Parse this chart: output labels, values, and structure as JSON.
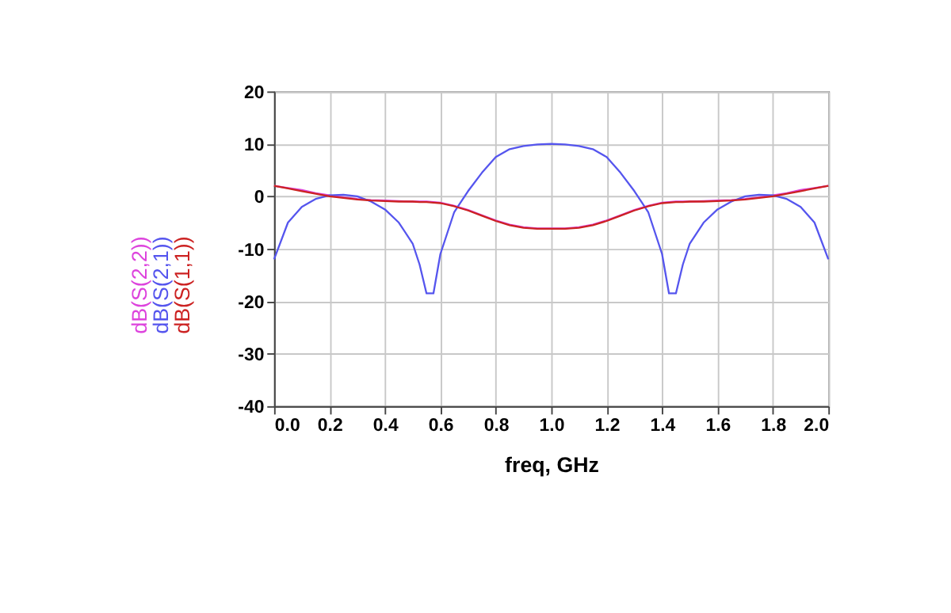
{
  "chart_data": {
    "type": "line",
    "xlabel": "freq, GHz",
    "x": [
      0,
      0.05,
      0.1,
      0.15,
      0.2,
      0.25,
      0.3,
      0.35,
      0.4,
      0.45,
      0.5,
      0.525,
      0.55,
      0.575,
      0.6,
      0.65,
      0.7,
      0.75,
      0.8,
      0.85,
      0.9,
      0.95,
      1.0,
      1.05,
      1.1,
      1.15,
      1.2,
      1.25,
      1.3,
      1.35,
      1.4,
      1.425,
      1.45,
      1.475,
      1.5,
      1.55,
      1.6,
      1.65,
      1.7,
      1.75,
      1.8,
      1.85,
      1.9,
      1.95,
      2.0
    ],
    "series": [
      {
        "name": "dB(S(2,2))",
        "color": "#dd44dd",
        "values": [
          2,
          1.6,
          1.2,
          0.6,
          0.2,
          -0.2,
          -0.5,
          -0.7,
          -0.8,
          -0.9,
          -1,
          -1,
          -1,
          -1.1,
          -1.2,
          -1.8,
          -2.6,
          -3.6,
          -4.6,
          -5.4,
          -5.9,
          -6.1,
          -6.1,
          -6.1,
          -5.9,
          -5.4,
          -4.6,
          -3.6,
          -2.6,
          -1.8,
          -1.2,
          -1.1,
          -1,
          -1,
          -1,
          -0.9,
          -0.8,
          -0.7,
          -0.5,
          -0.2,
          0.2,
          0.6,
          1.2,
          1.6,
          2
        ]
      },
      {
        "name": "dB(S(2,1))",
        "color": "#5555ee",
        "values": [
          -12,
          -5,
          -2,
          -0.5,
          0.2,
          0.3,
          0,
          -1,
          -2.5,
          -5,
          -9,
          -13,
          -18.5,
          -18.5,
          -11,
          -3,
          1,
          4.5,
          7.5,
          9,
          9.6,
          9.9,
          10,
          9.9,
          9.6,
          9,
          7.5,
          4.5,
          1,
          -3,
          -11,
          -18.5,
          -18.5,
          -13,
          -9,
          -5,
          -2.5,
          -1,
          0,
          0.3,
          0.2,
          -0.5,
          -2,
          -5,
          -12
        ]
      },
      {
        "name": "dB(S(1,1))",
        "color": "#cc2222",
        "values": [
          2,
          1.5,
          1,
          0.5,
          0,
          -0.3,
          -0.6,
          -0.8,
          -0.9,
          -1,
          -1,
          -1.1,
          -1.1,
          -1.2,
          -1.3,
          -1.9,
          -2.7,
          -3.7,
          -4.7,
          -5.5,
          -6,
          -6.2,
          -6.2,
          -6.2,
          -6,
          -5.5,
          -4.7,
          -3.7,
          -2.7,
          -1.9,
          -1.3,
          -1.2,
          -1.1,
          -1.1,
          -1,
          -1,
          -0.9,
          -0.8,
          -0.6,
          -0.3,
          0,
          0.5,
          1,
          1.5,
          2
        ]
      }
    ],
    "xlim": [
      0,
      2
    ],
    "xticks": [
      {
        "value": 0,
        "label": "0.0"
      },
      {
        "value": 0.2,
        "label": "0.2"
      },
      {
        "value": 0.4,
        "label": "0.4"
      },
      {
        "value": 0.6,
        "label": "0.6"
      },
      {
        "value": 0.8,
        "label": "0.8"
      },
      {
        "value": 1,
        "label": "1.0"
      },
      {
        "value": 1.2,
        "label": "1.2"
      },
      {
        "value": 1.4,
        "label": "1.4"
      },
      {
        "value": 1.6,
        "label": "1.6"
      },
      {
        "value": 1.8,
        "label": "1.8"
      },
      {
        "value": 2,
        "label": "2.0"
      }
    ],
    "ylim": [
      -40,
      20
    ],
    "yticks": [
      -40,
      -30,
      -20,
      -10,
      0,
      10,
      20
    ],
    "grid": true,
    "legend": false,
    "marker": "none",
    "line_style": "solid"
  }
}
